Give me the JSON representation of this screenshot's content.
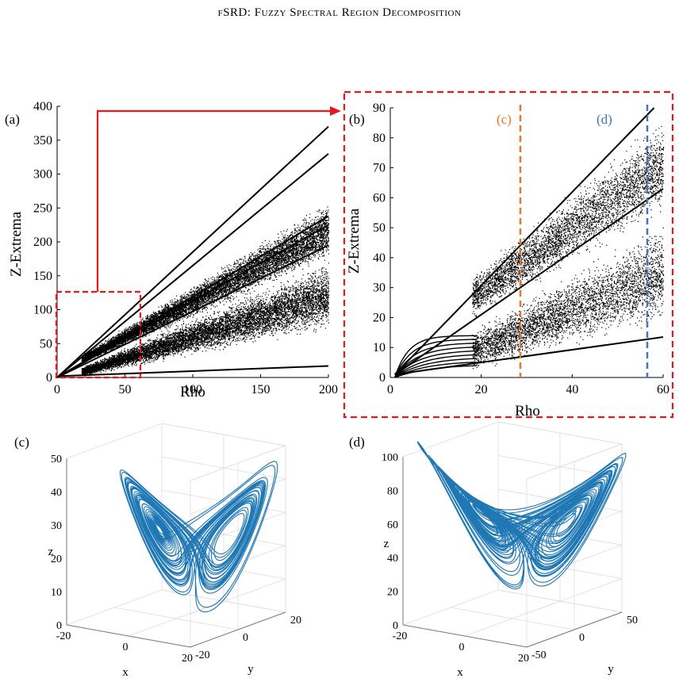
{
  "header": {
    "running_title": "fSRD: Fuzzy Spectral Region Decomposition"
  },
  "panels": {
    "a": {
      "label": "(a)"
    },
    "b": {
      "label": "(b)",
      "marker_c": "(c)",
      "marker_d": "(d)",
      "marker_c_color": "#e8752a",
      "marker_d_color": "#4472c4"
    },
    "c": {
      "label": "(c)"
    },
    "d": {
      "label": "(d)"
    }
  },
  "colors": {
    "zoom_box": "#e8191d",
    "trajectory": "#1f77b4",
    "points": "#000000"
  },
  "chart_data": [
    {
      "panel": "a",
      "type": "scatter",
      "title": "",
      "xlabel": "Rho",
      "ylabel": "Z-Extrema",
      "xlim": [
        0,
        200
      ],
      "ylim": [
        0,
        400
      ],
      "x_ticks": [
        "0",
        "50",
        "100",
        "150",
        "200"
      ],
      "y_ticks": [
        "0",
        "50",
        "100",
        "150",
        "200",
        "250",
        "300",
        "350",
        "400"
      ],
      "zoom_region": {
        "rho": [
          0,
          60
        ],
        "z": [
          0,
          125
        ]
      },
      "series": [
        {
          "kind": "line",
          "x": [
            0,
            200
          ],
          "y": [
            0,
            370
          ]
        },
        {
          "kind": "line",
          "x": [
            0,
            200
          ],
          "y": [
            0,
            330
          ]
        },
        {
          "kind": "line",
          "x": [
            0,
            200
          ],
          "y": [
            0,
            238
          ]
        },
        {
          "kind": "line",
          "x": [
            0,
            200
          ],
          "y": [
            0,
            225
          ]
        },
        {
          "kind": "line",
          "x": [
            0,
            200
          ],
          "y": [
            0,
            195
          ]
        },
        {
          "kind": "line",
          "x": [
            2,
            200
          ],
          "y": [
            2,
            17
          ]
        }
      ]
    },
    {
      "panel": "b",
      "type": "scatter",
      "title": "",
      "xlabel": "Rho",
      "ylabel": "Z-Extrema",
      "xlim": [
        0,
        60
      ],
      "ylim": [
        0,
        90
      ],
      "x_ticks": [
        "0",
        "20",
        "40",
        "60"
      ],
      "y_ticks": [
        "0",
        "10",
        "20",
        "30",
        "40",
        "50",
        "60",
        "70",
        "80",
        "90"
      ],
      "vertical_markers": [
        {
          "label": "(c)",
          "rho": 28
        },
        {
          "label": "(d)",
          "rho": 56
        }
      ],
      "series": [
        {
          "kind": "line",
          "x": [
            1,
            58
          ],
          "y": [
            1,
            90
          ]
        },
        {
          "kind": "line",
          "x": [
            1,
            60
          ],
          "y": [
            1,
            63
          ]
        },
        {
          "kind": "line",
          "x": [
            1,
            60
          ],
          "y": [
            1,
            13.5
          ]
        }
      ]
    },
    {
      "panel": "c",
      "type": "line",
      "title": "",
      "xlabel": "x",
      "ylabel": "y",
      "zlabel": "z",
      "x_ticks": [
        "-20",
        "0",
        "20"
      ],
      "y_ticks": [
        "-20",
        "0",
        "20"
      ],
      "z_ticks": [
        "0",
        "10",
        "20",
        "30",
        "40",
        "50"
      ],
      "zlim": [
        0,
        50
      ],
      "grid": true
    },
    {
      "panel": "d",
      "type": "line",
      "title": "",
      "xlabel": "x",
      "ylabel": "y",
      "zlabel": "z",
      "x_ticks": [
        "-20",
        "0",
        "20"
      ],
      "y_ticks": [
        "-50",
        "0",
        "50"
      ],
      "z_ticks": [
        "0",
        "20",
        "40",
        "60",
        "80",
        "100"
      ],
      "zlim": [
        0,
        100
      ],
      "grid": true
    }
  ]
}
